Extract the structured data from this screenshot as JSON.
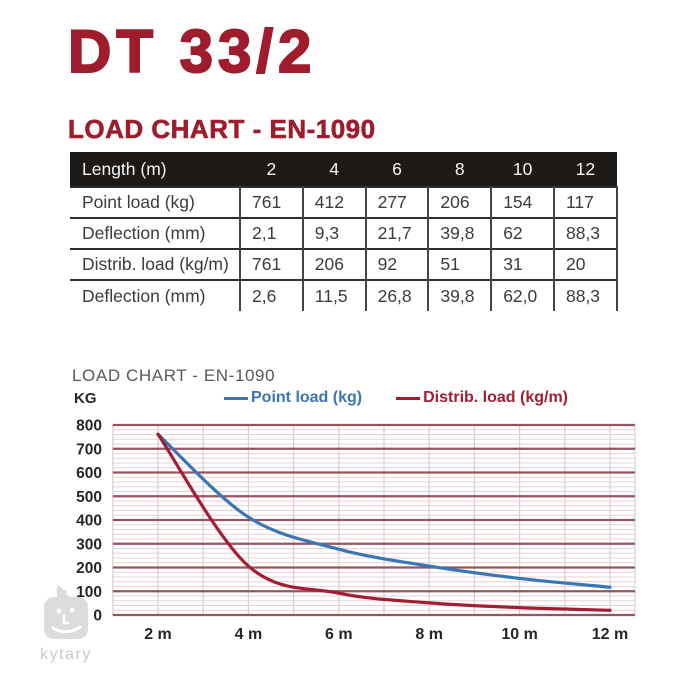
{
  "page": {
    "title": "DT 33/2",
    "section_title": "LOAD CHART - EN-1090"
  },
  "table": {
    "header": {
      "label": "Length (m)",
      "columns": [
        "2",
        "4",
        "6",
        "8",
        "10",
        "12"
      ]
    },
    "rows": [
      {
        "label": "Point load (kg)",
        "values": [
          "761",
          "412",
          "277",
          "206",
          "154",
          "117"
        ]
      },
      {
        "label": "Deflection (mm)",
        "values": [
          "2,1",
          "9,3",
          "21,7",
          "39,8",
          "62",
          "88,3"
        ]
      },
      {
        "label": "Distrib. load (kg/m)",
        "values": [
          "761",
          "206",
          "92",
          "51",
          "31",
          "20"
        ]
      },
      {
        "label": "Deflection (mm)",
        "values": [
          "2,6",
          "11,5",
          "26,8",
          "39,8",
          "62,0",
          "88,3"
        ]
      }
    ]
  },
  "chart": {
    "title": "LOAD CHART - EN-1090",
    "y_axis_unit": "KG",
    "legend": [
      {
        "label": "Point load (kg)",
        "color": "#3a76b4"
      },
      {
        "label": "Distrib. load (kg/m)",
        "color": "#a31d32"
      }
    ]
  },
  "chart_data": {
    "type": "line",
    "title": "LOAD CHART - EN-1090",
    "ylabel": "KG",
    "x": [
      2,
      4,
      6,
      8,
      10,
      12
    ],
    "categories": [
      "2 m",
      "4 m",
      "6 m",
      "8 m",
      "10 m",
      "12 m"
    ],
    "series": [
      {
        "name": "Point load (kg)",
        "color": "#3a76b4",
        "values": [
          761,
          412,
          277,
          206,
          154,
          117
        ]
      },
      {
        "name": "Distrib. load (kg/m)",
        "color": "#a31d32",
        "values": [
          761,
          206,
          92,
          51,
          31,
          20
        ]
      }
    ],
    "ylim": [
      0,
      800
    ],
    "y_ticks": [
      0,
      100,
      200,
      300,
      400,
      500,
      600,
      700,
      800
    ],
    "minor_step": 20,
    "x_gridline_meters": [
      1,
      2,
      3,
      4,
      5,
      6,
      7,
      8,
      9,
      10,
      11,
      12
    ],
    "legend_position": "top",
    "grid": {
      "major_color": "#96545e",
      "minor_color": "#e8d0d4",
      "vertical_color": "#d2d2d6",
      "tick_text_color": "#262626"
    },
    "smooth": true
  },
  "watermark": {
    "text": "kytary"
  },
  "colors": {
    "brand_red": "#9e1c2c",
    "table_header_bg": "#1c1917",
    "table_header_text": "#f5f5f5",
    "table_text": "#3b3b3b",
    "chart_title_gray": "#595959"
  }
}
